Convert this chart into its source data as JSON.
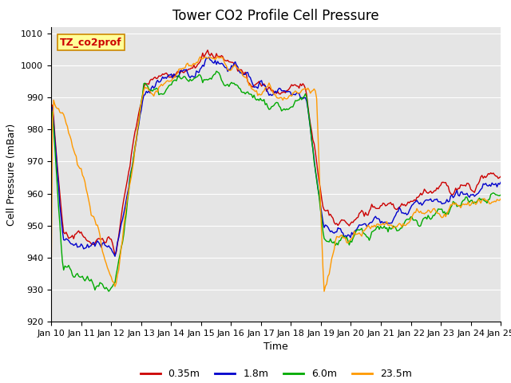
{
  "title": "Tower CO2 Profile Cell Pressure",
  "xlabel": "Time",
  "ylabel": "Cell Pressure (mBar)",
  "ylim": [
    920,
    1012
  ],
  "yticks": [
    920,
    930,
    940,
    950,
    960,
    970,
    980,
    990,
    1000,
    1010
  ],
  "xtick_labels": [
    "Jan 10",
    "Jan 11",
    "Jan 12",
    "Jan 13",
    "Jan 14",
    "Jan 15",
    "Jan 16",
    "Jan 17",
    "Jan 18",
    "Jan 19",
    "Jan 20",
    "Jan 21",
    "Jan 22",
    "Jan 23",
    "Jan 24",
    "Jan 25"
  ],
  "series_labels": [
    "0.35m",
    "1.8m",
    "6.0m",
    "23.5m"
  ],
  "series_colors": [
    "#cc0000",
    "#0000cc",
    "#00aa00",
    "#ff9900"
  ],
  "background_color": "#e5e5e5",
  "grid_color": "#ffffff",
  "annotation_text": "TZ_co2prof",
  "annotation_bg": "#ffff99",
  "annotation_border": "#cc8800",
  "title_fontsize": 12,
  "axis_label_fontsize": 9,
  "tick_fontsize": 8,
  "legend_fontsize": 9,
  "line_width": 1.0
}
